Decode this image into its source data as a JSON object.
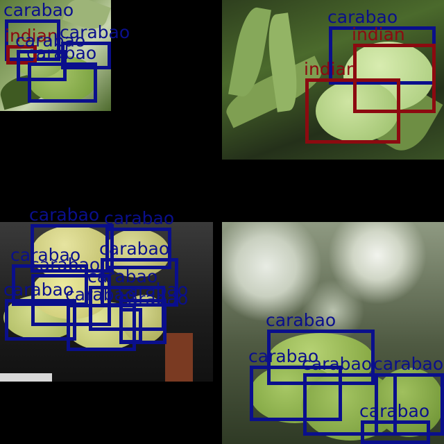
{
  "colors": {
    "carabao": "#0a0f8c",
    "indian": "#8c0a10",
    "background": "#000000"
  },
  "tiles": [
    {
      "id": "top-left",
      "detections": [
        {
          "class": "carabao"
        },
        {
          "class": "indian"
        },
        {
          "class": "carabao"
        },
        {
          "class": "carabao"
        },
        {
          "class": "carabao"
        }
      ]
    },
    {
      "id": "top-right",
      "detections": [
        {
          "class": "carabao"
        },
        {
          "class": "indian"
        },
        {
          "class": "indian"
        }
      ]
    },
    {
      "id": "bottom-left",
      "detections": [
        {
          "class": "carabao"
        },
        {
          "class": "carabao"
        },
        {
          "class": "carabao"
        },
        {
          "class": "carabao"
        },
        {
          "class": "carabao"
        },
        {
          "class": "carabao"
        },
        {
          "class": "carabao"
        },
        {
          "class": "carabao"
        },
        {
          "class": "carabao"
        },
        {
          "class": "carabao"
        }
      ]
    },
    {
      "id": "bottom-right",
      "detections": [
        {
          "class": "carabao"
        },
        {
          "class": "carabao"
        },
        {
          "class": "carabao"
        },
        {
          "class": "carabao"
        },
        {
          "class": "carabao"
        }
      ]
    }
  ]
}
